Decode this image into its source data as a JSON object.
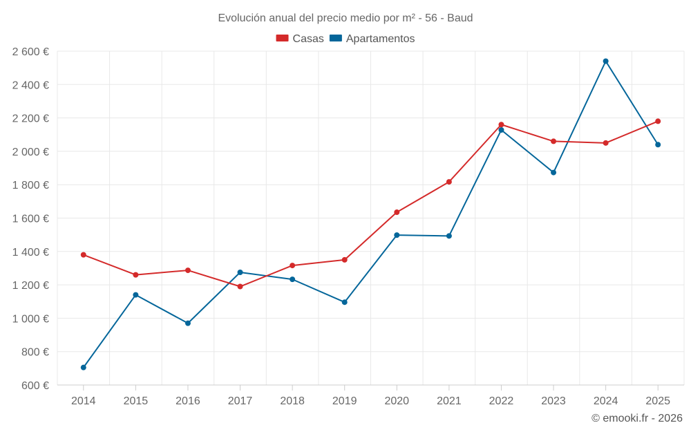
{
  "chart_data": {
    "type": "line",
    "title": "Evolución anual del precio medio por m² - 56 - Baud",
    "categories": [
      "2014",
      "2015",
      "2016",
      "2017",
      "2018",
      "2019",
      "2020",
      "2021",
      "2022",
      "2023",
      "2024",
      "2025"
    ],
    "series": [
      {
        "name": "Casas",
        "color": "#d42a2a",
        "values": [
          1380,
          1260,
          1287,
          1190,
          1316,
          1350,
          1635,
          1817,
          2160,
          2060,
          2050,
          2180
        ]
      },
      {
        "name": "Apartamentos",
        "color": "#04669a",
        "values": [
          705,
          1140,
          970,
          1275,
          1233,
          1096,
          1498,
          1493,
          2128,
          1873,
          2540,
          2040
        ]
      }
    ],
    "ylim": [
      600,
      2600
    ],
    "yticks": [
      600,
      800,
      1000,
      1200,
      1400,
      1600,
      1800,
      2000,
      2200,
      2400,
      2600
    ],
    "ytick_labels": [
      "600 €",
      "800 €",
      "1 000 €",
      "1 200 €",
      "1 400 €",
      "1 600 €",
      "1 800 €",
      "2 000 €",
      "2 200 €",
      "2 400 €",
      "2 600 €"
    ],
    "legend_position": "top-center",
    "grid": true,
    "xlabel": "",
    "ylabel": ""
  },
  "credit": "© emooki.fr - 2026"
}
